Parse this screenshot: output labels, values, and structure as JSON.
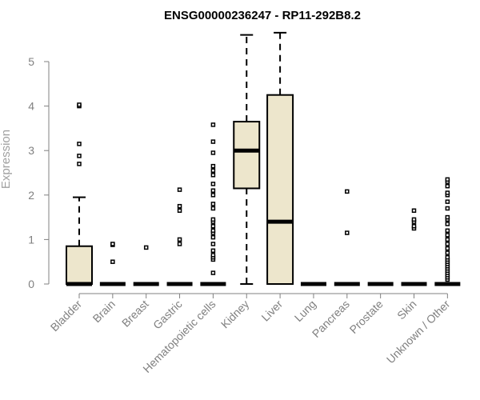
{
  "chart_data": {
    "type": "box",
    "title": "ENSG00000236247 - RP11-292B8.2",
    "xlabel": "",
    "ylabel": "Expression",
    "ylim": [
      0,
      5.6
    ],
    "yticks": [
      0,
      1,
      2,
      3,
      4,
      5
    ],
    "grid": false,
    "colors": {
      "box_fill": "#ede6cc",
      "stroke": "#000000",
      "axis": "#808080"
    },
    "categories": [
      "Bladder",
      "Brain",
      "Breast",
      "Gastric",
      "Hematopoietic cells",
      "Kidney",
      "Liver",
      "Lung",
      "Pancreas",
      "Prostate",
      "Skin",
      "Unknown / Other"
    ],
    "boxes": [
      {
        "category": "Bladder",
        "min": 0,
        "q1": 0,
        "median": 0,
        "q3": 0.85,
        "max": 1.95,
        "outliers": [
          2.7,
          2.88,
          3.15,
          4.0,
          4.03
        ]
      },
      {
        "category": "Brain",
        "min": 0,
        "q1": 0,
        "median": 0,
        "q3": 0,
        "max": 0,
        "outliers": [
          0.5,
          0.88,
          0.9
        ]
      },
      {
        "category": "Breast",
        "min": 0,
        "q1": 0,
        "median": 0,
        "q3": 0,
        "max": 0,
        "outliers": [
          0.82
        ]
      },
      {
        "category": "Gastric",
        "min": 0,
        "q1": 0,
        "median": 0,
        "q3": 0,
        "max": 0,
        "outliers": [
          0.9,
          1.0,
          1.65,
          1.75,
          2.12
        ]
      },
      {
        "category": "Hematopoietic cells",
        "min": 0,
        "q1": 0,
        "median": 0,
        "q3": 0,
        "max": 0,
        "outliers": [
          0.25,
          0.55,
          0.6,
          0.65,
          0.75,
          0.9,
          1.05,
          1.15,
          1.2,
          1.3,
          1.4,
          1.45,
          1.7,
          1.8,
          2.0,
          2.1,
          2.25,
          2.45,
          2.55,
          2.65,
          2.95,
          3.2,
          3.58
        ]
      },
      {
        "category": "Kidney",
        "min": 0,
        "q1": 2.15,
        "median": 3.0,
        "q3": 3.65,
        "max": 5.6,
        "outliers": []
      },
      {
        "category": "Liver",
        "min": 0,
        "q1": 0,
        "median": 1.4,
        "q3": 4.25,
        "max": 5.65,
        "outliers": []
      },
      {
        "category": "Lung",
        "min": 0,
        "q1": 0,
        "median": 0,
        "q3": 0,
        "max": 0,
        "outliers": []
      },
      {
        "category": "Pancreas",
        "min": 0,
        "q1": 0,
        "median": 0,
        "q3": 0,
        "max": 0,
        "outliers": [
          1.15,
          2.08
        ]
      },
      {
        "category": "Prostate",
        "min": 0,
        "q1": 0,
        "median": 0,
        "q3": 0,
        "max": 0,
        "outliers": []
      },
      {
        "category": "Skin",
        "min": 0,
        "q1": 0,
        "median": 0,
        "q3": 0,
        "max": 0,
        "outliers": [
          1.25,
          1.3,
          1.4,
          1.45,
          1.65
        ]
      },
      {
        "category": "Unknown / Other",
        "min": 0,
        "q1": 0,
        "median": 0,
        "q3": 0,
        "max": 0,
        "outliers": [
          0.1,
          0.15,
          0.2,
          0.25,
          0.3,
          0.35,
          0.4,
          0.45,
          0.5,
          0.55,
          0.6,
          0.7,
          0.8,
          0.9,
          1.0,
          1.1,
          1.2,
          1.35,
          1.45,
          1.5,
          1.7,
          1.85,
          2.0,
          2.05,
          2.2,
          2.3,
          2.35
        ]
      }
    ]
  }
}
